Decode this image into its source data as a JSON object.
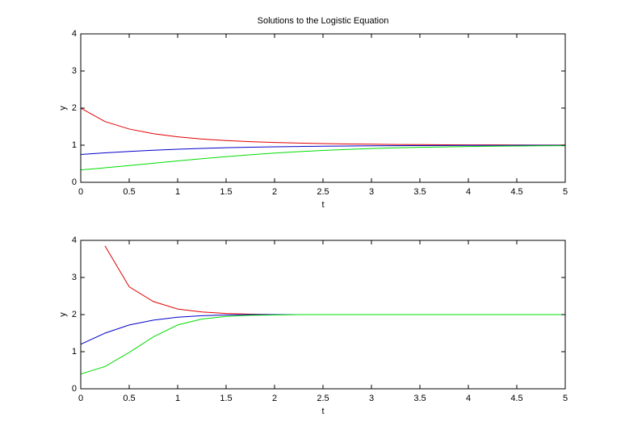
{
  "chart_data": [
    {
      "type": "line",
      "title": "Solutions to the Logistic Equation",
      "x_label": "t",
      "y_label": "y",
      "x": [
        0,
        0.25,
        0.5,
        0.75,
        1,
        1.25,
        1.5,
        1.75,
        2,
        2.25,
        2.5,
        2.75,
        3,
        3.25,
        3.5,
        3.75,
        4,
        4.25,
        4.5,
        4.75,
        5
      ],
      "series": [
        {
          "color": "#e00000",
          "values": [
            2,
            1.637,
            1.436,
            1.309,
            1.225,
            1.167,
            1.126,
            1.095,
            1.073,
            1.056,
            1.043,
            1.033,
            1.026,
            1.02,
            1.015,
            1.012,
            1.009,
            1.007,
            1.006,
            1.004,
            1.003
          ]
        },
        {
          "color": "#0000c8",
          "values": [
            0.75,
            0.794,
            0.832,
            0.864,
            0.891,
            0.913,
            0.931,
            0.945,
            0.957,
            0.966,
            0.973,
            0.979,
            0.984,
            0.987,
            0.99,
            0.992,
            0.994,
            0.995,
            0.996,
            0.997,
            0.998
          ]
        },
        {
          "color": "#00dd00",
          "values": [
            0.333,
            0.391,
            0.452,
            0.514,
            0.576,
            0.636,
            0.691,
            0.742,
            0.787,
            0.826,
            0.859,
            0.887,
            0.909,
            0.928,
            0.943,
            0.955,
            0.965,
            0.972,
            0.978,
            0.983,
            0.987
          ]
        }
      ],
      "xlim": [
        0,
        5
      ],
      "xticks": [
        0,
        0.5,
        1,
        1.5,
        2,
        2.5,
        3,
        3.5,
        4,
        4.5,
        5
      ],
      "ylim": [
        0,
        4
      ],
      "yticks": [
        0,
        1,
        2,
        3,
        4
      ]
    },
    {
      "type": "line",
      "x_label": "t",
      "y_label": "y",
      "x": [
        0,
        0.25,
        0.5,
        0.75,
        1,
        1.25,
        1.5,
        1.75,
        2,
        2.25,
        2.5,
        2.75,
        3,
        3.25,
        3.5,
        3.75,
        4,
        4.25,
        4.5,
        4.75,
        5
      ],
      "series": [
        {
          "color": "#e00000",
          "values": [
            null,
            3.85,
            2.75,
            2.35,
            2.15,
            2.07,
            2.03,
            2.01,
            2,
            2,
            2,
            2,
            2,
            2,
            2,
            2,
            2,
            2,
            2,
            2,
            2
          ]
        },
        {
          "color": "#0000c8",
          "values": [
            1.2,
            1.5,
            1.72,
            1.85,
            1.93,
            1.97,
            1.99,
            2,
            2,
            2,
            2,
            2,
            2,
            2,
            2,
            2,
            2,
            2,
            2,
            2,
            2
          ]
        },
        {
          "color": "#00dd00",
          "values": [
            0.4,
            0.6,
            0.98,
            1.4,
            1.72,
            1.88,
            1.95,
            1.98,
            1.99,
            2,
            2,
            2,
            2,
            2,
            2,
            2,
            2,
            2,
            2,
            2,
            2
          ]
        }
      ],
      "xlim": [
        0,
        5
      ],
      "xticks": [
        0,
        0.5,
        1,
        1.5,
        2,
        2.5,
        3,
        3.5,
        4,
        4.5,
        5
      ],
      "ylim": [
        0,
        4
      ],
      "yticks": [
        0,
        1,
        2,
        3,
        4
      ]
    }
  ]
}
